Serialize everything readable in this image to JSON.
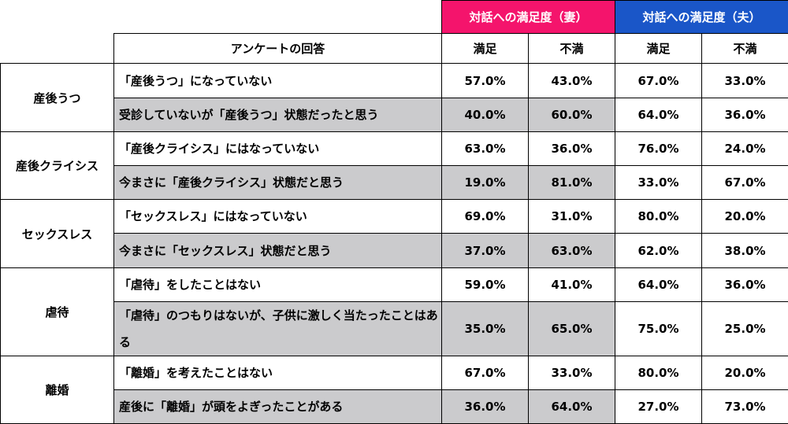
{
  "header": {
    "wife_group": "対話への満足度（妻）",
    "husband_group": "対話への満足度（夫）",
    "answer_col": "アンケートの回答",
    "satisfied": "満足",
    "dissatisfied": "不満"
  },
  "categories": [
    {
      "name": "産後うつ",
      "rows": [
        {
          "answer": "「産後うつ」になっていない",
          "wife_sat": "57.0%",
          "wife_dis": "43.0%",
          "husb_sat": "67.0%",
          "husb_dis": "33.0%"
        },
        {
          "answer": "受診していないが「産後うつ」状態だったと思う",
          "wife_sat": "40.0%",
          "wife_dis": "60.0%",
          "husb_sat": "64.0%",
          "husb_dis": "36.0%"
        }
      ]
    },
    {
      "name": "産後クライシス",
      "rows": [
        {
          "answer": "「産後クライシス」にはなっていない",
          "wife_sat": "63.0%",
          "wife_dis": "36.0%",
          "husb_sat": "76.0%",
          "husb_dis": "24.0%"
        },
        {
          "answer": "今まさに「産後クライシス」状態だと思う",
          "wife_sat": "19.0%",
          "wife_dis": "81.0%",
          "husb_sat": "33.0%",
          "husb_dis": "67.0%"
        }
      ]
    },
    {
      "name": "セックスレス",
      "rows": [
        {
          "answer": "「セックスレス」にはなっていない",
          "wife_sat": "69.0%",
          "wife_dis": "31.0%",
          "husb_sat": "80.0%",
          "husb_dis": "20.0%"
        },
        {
          "answer": "今まさに「セックスレス」状態だと思う",
          "wife_sat": "37.0%",
          "wife_dis": "63.0%",
          "husb_sat": "62.0%",
          "husb_dis": "38.0%"
        }
      ]
    },
    {
      "name": "虐待",
      "rows": [
        {
          "answer": "「虐待」をしたことはない",
          "wife_sat": "59.0%",
          "wife_dis": "41.0%",
          "husb_sat": "64.0%",
          "husb_dis": "36.0%"
        },
        {
          "answer": "「虐待」のつもりはないが、子供に激しく当たったことはある",
          "wife_sat": "35.0%",
          "wife_dis": "65.0%",
          "husb_sat": "75.0%",
          "husb_dis": "25.0%"
        }
      ]
    },
    {
      "name": "離婚",
      "rows": [
        {
          "answer": "「離婚」を考えたことはない",
          "wife_sat": "67.0%",
          "wife_dis": "33.0%",
          "husb_sat": "80.0%",
          "husb_dis": "20.0%"
        },
        {
          "answer": "産後に「離婚」が頭をよぎったことがある",
          "wife_sat": "36.0%",
          "wife_dis": "64.0%",
          "husb_sat": "27.0%",
          "husb_dis": "73.0%"
        }
      ]
    }
  ],
  "colors": {
    "wife_header": "#f4146c",
    "husband_header": "#1a56c8",
    "gray_fill": "#cbcbcd"
  }
}
